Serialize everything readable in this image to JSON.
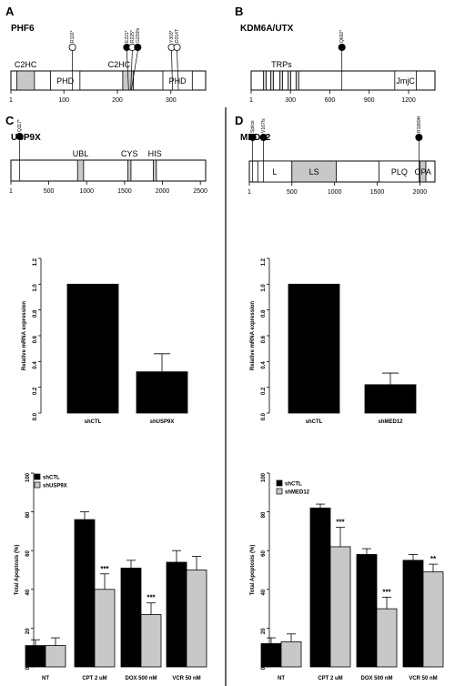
{
  "panels": [
    {
      "letter": "A",
      "gene": "PHF6",
      "length": 365,
      "ticks": [
        1,
        100,
        200,
        300
      ],
      "domains": [
        {
          "label": "C2HC",
          "start": 12,
          "end": 45,
          "shaded": true
        },
        {
          "label": "PHD",
          "start": 75,
          "end": 130,
          "shaded": false
        },
        {
          "label": "C2HC",
          "start": 210,
          "end": 230,
          "shaded": true
        },
        {
          "label": "PHD",
          "start": 285,
          "end": 340,
          "shaded": false
        }
      ],
      "mutations": [
        {
          "label": "R116*",
          "pos": 116,
          "filled": false
        },
        {
          "label": "E221*",
          "pos": 221,
          "filled": true
        },
        {
          "label": "R225*",
          "pos": 225,
          "filled": false
        },
        {
          "label": "G226fs",
          "pos": 226,
          "filled": true
        },
        {
          "label": "Y303*",
          "pos": 303,
          "filled": false
        },
        {
          "label": "D314T",
          "pos": 314,
          "filled": false
        }
      ]
    },
    {
      "letter": "B",
      "gene": "KDM6A/UTX",
      "length": 1401,
      "ticks": [
        1,
        300,
        600,
        900,
        1200
      ],
      "domains": [
        {
          "label": "TRPs",
          "start": 95,
          "end": 370,
          "shaded": false
        },
        {
          "label": "JmjC",
          "start": 1095,
          "end": 1258,
          "shaded": false
        }
      ],
      "mutations": [
        {
          "label": "Q692*",
          "pos": 692,
          "filled": true
        }
      ]
    },
    {
      "letter": "C",
      "gene": "USP9X",
      "length": 2570,
      "ticks": [
        1,
        500,
        1000,
        1500,
        2000,
        2500
      ],
      "domains": [
        {
          "label": "UBL",
          "start": 880,
          "end": 960,
          "shaded": true
        },
        {
          "label": "CYS",
          "start": 1545,
          "end": 1585,
          "shaded": true
        },
        {
          "label": "HIS",
          "start": 1880,
          "end": 1920,
          "shaded": true
        }
      ],
      "mutations": [
        {
          "label": "Q117*",
          "pos": 117,
          "filled": true
        }
      ]
    },
    {
      "letter": "D",
      "gene": "MED12",
      "length": 2177,
      "ticks": [
        1,
        500,
        1000,
        1500,
        2000
      ],
      "domains": [
        {
          "label": "L",
          "start": 100,
          "end": 500,
          "shaded": false
        },
        {
          "label": "LS",
          "start": 500,
          "end": 1020,
          "shaded": true
        },
        {
          "label": "PLQ",
          "start": 1520,
          "end": 2000,
          "shaded": false
        },
        {
          "label": "OPA",
          "start": 2000,
          "end": 2070,
          "shaded": true
        }
      ],
      "mutations": [
        {
          "label": "Splice",
          "pos": 40,
          "filled": true
        },
        {
          "label": "V167fs",
          "pos": 167,
          "filled": true
        },
        {
          "label": "R1989H",
          "pos": 1989,
          "filled": true
        }
      ]
    }
  ],
  "chart_data": [
    {
      "type": "bar",
      "panel": "C-expression",
      "ylabel": "Relative mRNA expression",
      "ylim": [
        0,
        1.2
      ],
      "yticks": [
        "0.0",
        "0.2",
        "0.4",
        "0.6",
        "0.8",
        "1.0",
        "1.2"
      ],
      "categories": [
        "shCTL",
        "shUSP9X"
      ],
      "values": [
        1.0,
        0.32
      ],
      "errors": [
        0,
        0.14
      ]
    },
    {
      "type": "bar",
      "panel": "D-expression",
      "ylabel": "Relative mRNA expression",
      "ylim": [
        0,
        1.2
      ],
      "yticks": [
        "0.0",
        "0.2",
        "0.4",
        "0.6",
        "0.8",
        "1.0",
        "1.2"
      ],
      "categories": [
        "shCTL",
        "shMED12"
      ],
      "values": [
        1.0,
        0.22
      ],
      "errors": [
        0,
        0.09
      ]
    },
    {
      "type": "bar",
      "panel": "C-apoptosis",
      "ylabel": "Total Apoptosis (%)",
      "ylim": [
        0,
        100
      ],
      "yticks": [
        "0",
        "20",
        "40",
        "60",
        "80",
        "100"
      ],
      "categories": [
        "NT",
        "CPT 2 uM",
        "DOX 500 nM",
        "VCR 50 nM"
      ],
      "series": [
        {
          "name": "shCTL",
          "color": "#000000",
          "values": [
            11,
            76,
            51,
            54
          ],
          "errors": [
            3,
            4,
            4,
            6
          ]
        },
        {
          "name": "shUSP9X",
          "color": "#c8c8c8",
          "values": [
            11,
            40,
            27,
            50
          ],
          "errors": [
            4,
            8,
            6,
            7
          ]
        }
      ],
      "significance": [
        "",
        "***",
        "***",
        ""
      ]
    },
    {
      "type": "bar",
      "panel": "D-apoptosis",
      "ylabel": "Total Apoptosis (%)",
      "ylim": [
        0,
        100
      ],
      "yticks": [
        "0",
        "20",
        "40",
        "60",
        "80",
        "100"
      ],
      "categories": [
        "NT",
        "CPT 2 uM",
        "DOX 500 nM",
        "VCR 50 nM"
      ],
      "series": [
        {
          "name": "shCTL",
          "color": "#000000",
          "values": [
            12,
            82,
            58,
            55
          ],
          "errors": [
            3,
            2,
            3,
            3
          ]
        },
        {
          "name": "shMED12",
          "color": "#c8c8c8",
          "values": [
            13,
            62,
            30,
            49
          ],
          "errors": [
            4,
            10,
            6,
            4
          ]
        }
      ],
      "significance": [
        "",
        "***",
        "***",
        "**"
      ]
    }
  ]
}
